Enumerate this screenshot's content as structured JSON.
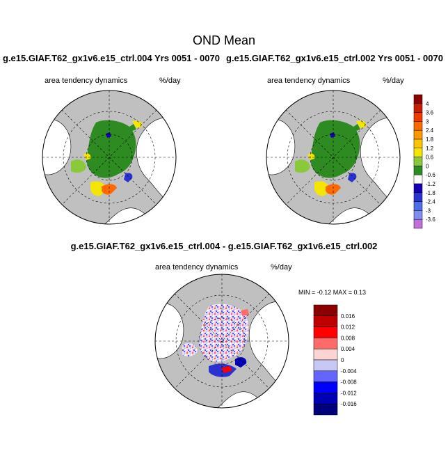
{
  "figure": {
    "title": "OND Mean",
    "left_panel": {
      "case": "g.e15.GIAF.T62_gx1v6.e15_ctrl.004  Yrs 0051 - 0070",
      "variable": "area tendency dynamics",
      "units": "%/day"
    },
    "right_panel": {
      "case": "g.e15.GIAF.T62_gx1v6.e15_ctrl.002  Yrs 0051 - 0070",
      "variable": "area tendency dynamics",
      "units": "%/day"
    },
    "diff_panel": {
      "title": "g.e15.GIAF.T62_gx1v6.e15_ctrl.004 - g.e15.GIAF.T62_gx1v6.e15_ctrl.002",
      "variable": "area tendency dynamics",
      "units": "%/day",
      "min_max": "MIN =  -0.12 MAX =   0.13"
    }
  },
  "chart_data": [
    {
      "type": "map",
      "projection": "north-polar-stereographic",
      "title": "g.e15.GIAF.T62_gx1v6.e15_ctrl.004  Yrs 0051 - 0070",
      "variable": "area tendency dynamics",
      "units": "%/day"
    },
    {
      "type": "map",
      "projection": "north-polar-stereographic",
      "title": "g.e15.GIAF.T62_gx1v6.e15_ctrl.002  Yrs 0051 - 0070",
      "variable": "area tendency dynamics",
      "units": "%/day"
    },
    {
      "type": "map",
      "projection": "north-polar-stereographic",
      "title": "g.e15.GIAF.T62_gx1v6.e15_ctrl.004 - g.e15.GIAF.T62_gx1v6.e15_ctrl.002",
      "variable": "area tendency dynamics",
      "units": "%/day",
      "min": -0.12,
      "max": 0.13
    }
  ],
  "colorbar_top": {
    "labels": [
      "4",
      "3.6",
      "3",
      "2.4",
      "1.8",
      "1.2",
      "0.6",
      "0",
      "-0.6",
      "-1.2",
      "-1.8",
      "-2.4",
      "-3",
      "-3.6"
    ],
    "colors": [
      "#8b0000",
      "#c81e00",
      "#ee3b00",
      "#ff6a00",
      "#ff9900",
      "#ffc400",
      "#f5e600",
      "#8cc83c",
      "#2e8b22",
      "#ffffff",
      "#1400b4",
      "#2a32d2",
      "#4c6ee6",
      "#7e8ef0",
      "#c070d8"
    ]
  },
  "colorbar_bottom": {
    "labels": [
      "0.016",
      "0.012",
      "0.008",
      "0.004",
      "0",
      "-0.004",
      "-0.008",
      "-0.012",
      "-0.016"
    ],
    "colors": [
      "#8b0000",
      "#c00000",
      "#ff0000",
      "#ff6a6a",
      "#fcd4d4",
      "#c8c8f5",
      "#6464ff",
      "#0000ff",
      "#0000b4",
      "#00007a"
    ]
  }
}
